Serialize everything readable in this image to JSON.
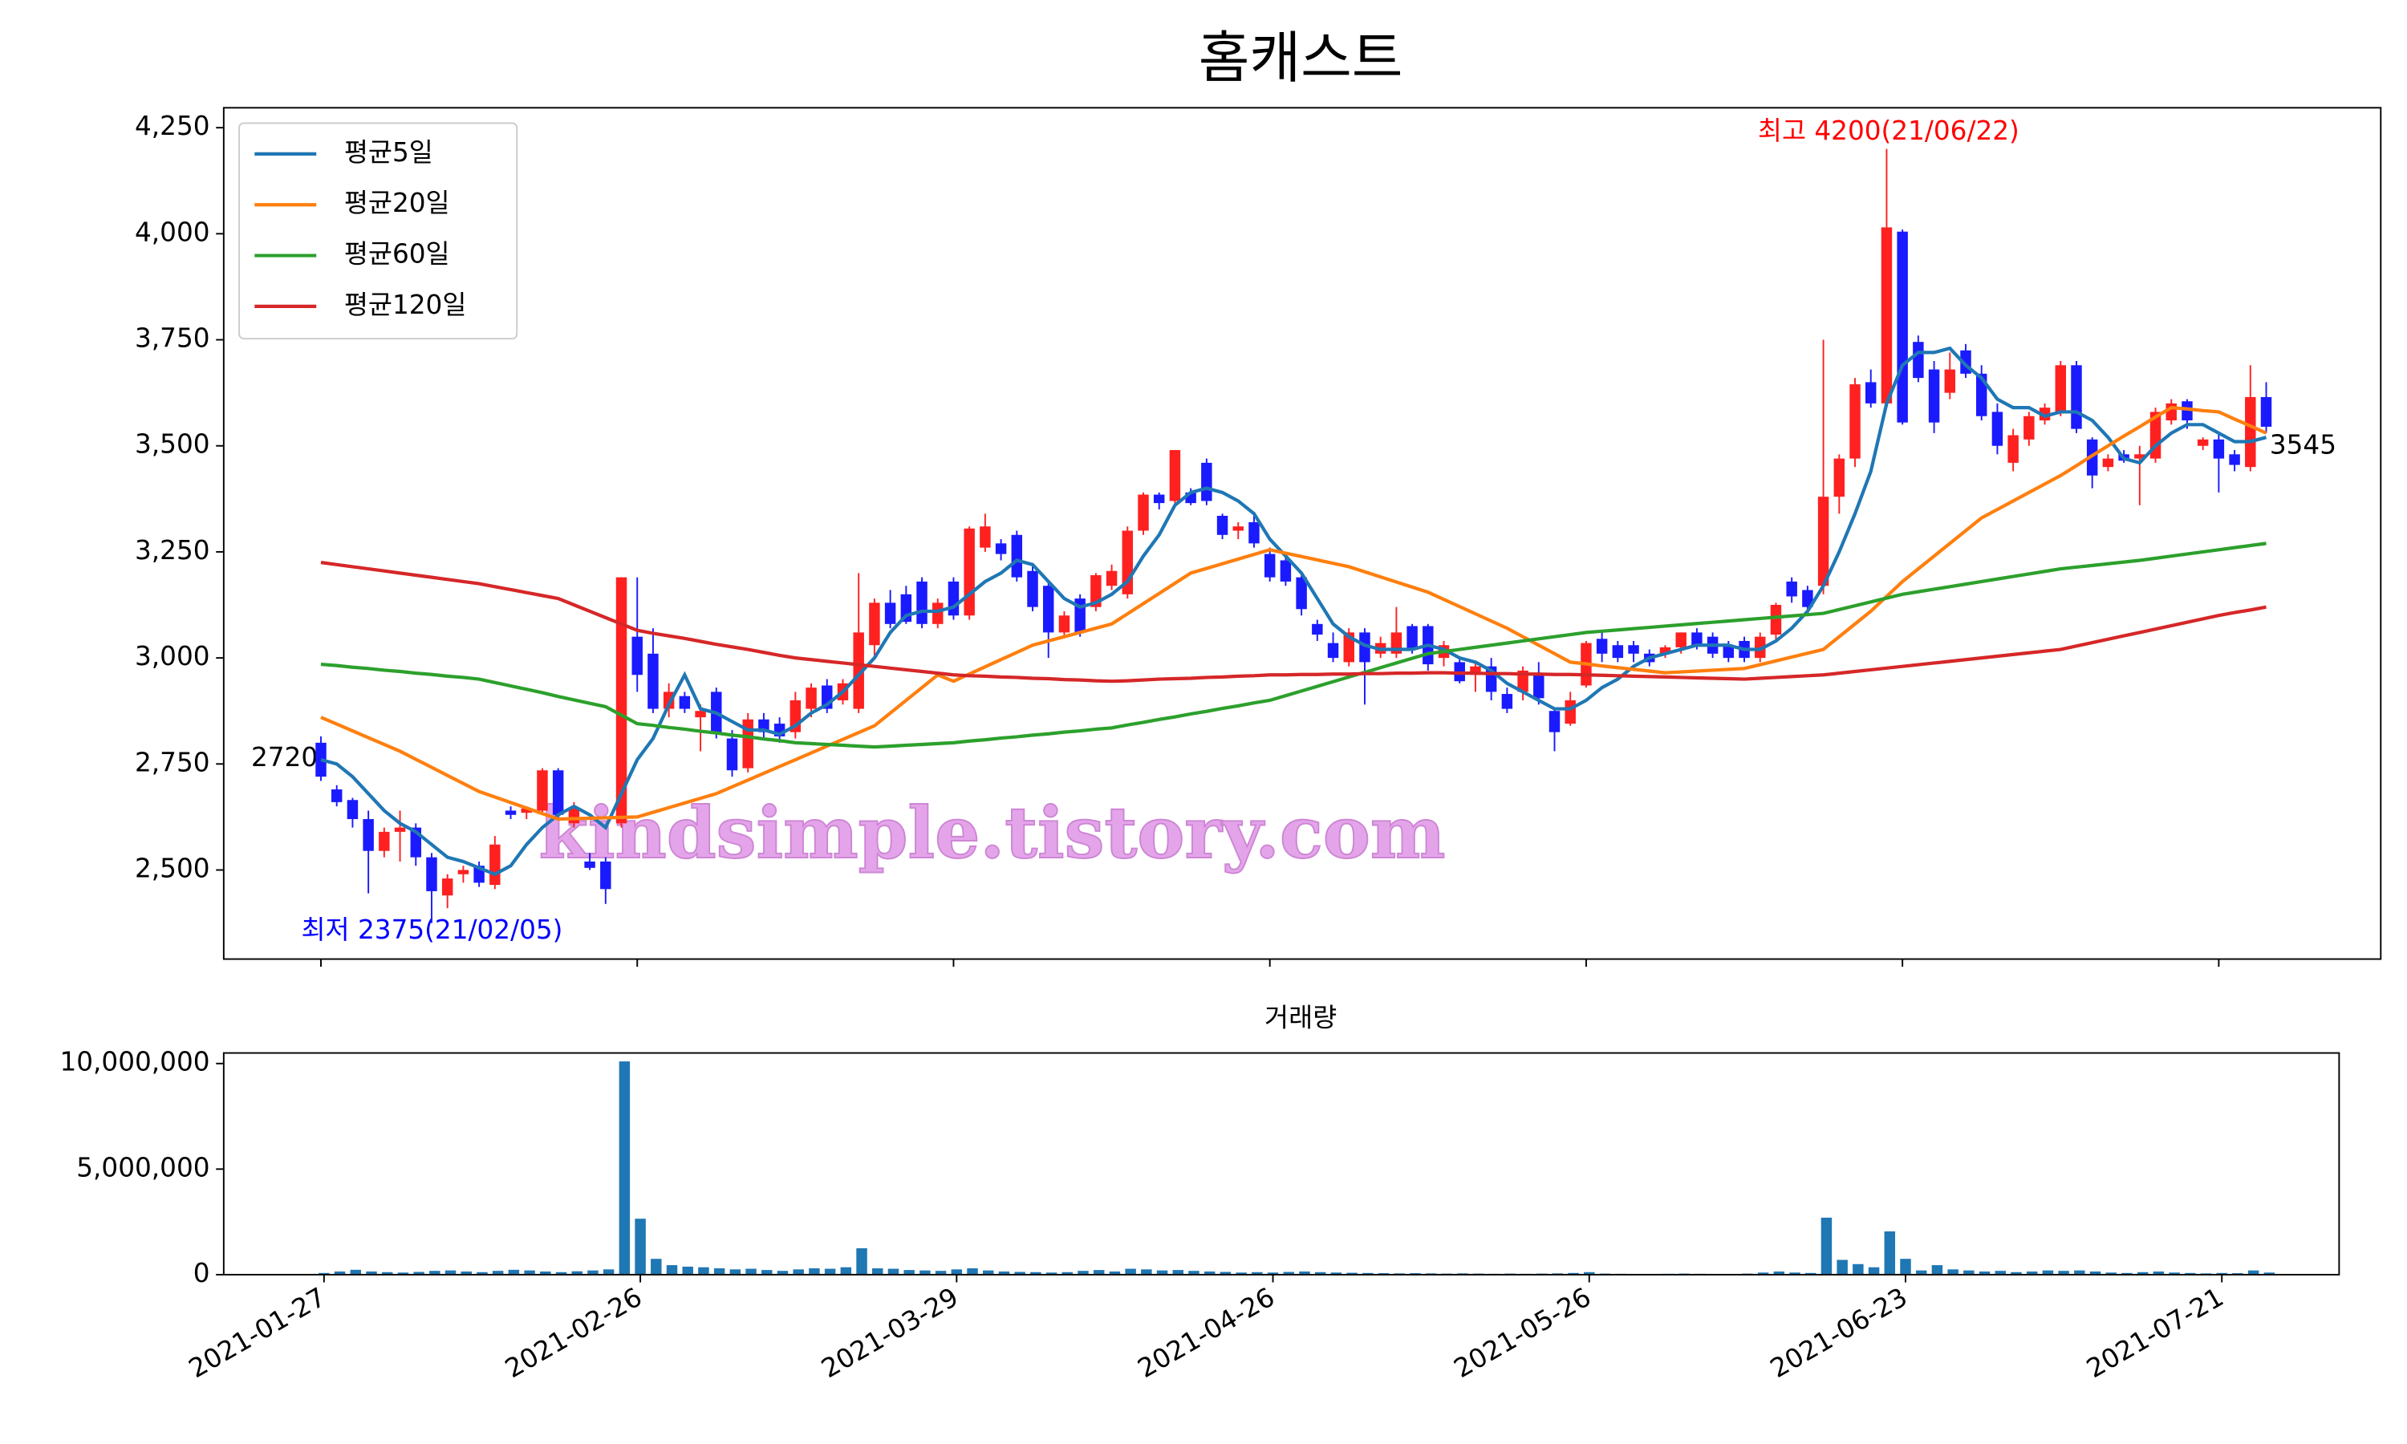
{
  "chart_data": {
    "type": "candlestick",
    "title": "홈캐스트",
    "ylim": [
      2290,
      4297
    ],
    "yticks": [
      {
        "value": 2500,
        "label": "2,500"
      },
      {
        "value": 2750,
        "label": "2,750"
      },
      {
        "value": 3000,
        "label": "3,000"
      },
      {
        "value": 3250,
        "label": "3,250"
      },
      {
        "value": 3500,
        "label": "3,500"
      },
      {
        "value": 3750,
        "label": "3,750"
      },
      {
        "value": 4000,
        "label": "4,000"
      },
      {
        "value": 4250,
        "label": "4,250"
      }
    ],
    "up_color": "#ff2020",
    "down_color": "#1a1aff",
    "legend": "upper left",
    "open": [
      2800,
      2690,
      2665,
      2620,
      2545,
      2590,
      2600,
      2530,
      2440,
      2490,
      2510,
      2465,
      2640,
      2635,
      2640,
      2735,
      2610,
      2520,
      2520,
      2610,
      3050,
      3010,
      2880,
      2910,
      2860,
      2920,
      2810,
      2740,
      2855,
      2845,
      2825,
      2880,
      2935,
      2900,
      2880,
      3030,
      3130,
      3150,
      3180,
      3080,
      3180,
      3100,
      3260,
      3270,
      3290,
      3205,
      3170,
      3060,
      3140,
      3120,
      3170,
      3150,
      3300,
      3385,
      3370,
      3390,
      3460,
      3335,
      3300,
      3320,
      3245,
      3230,
      3190,
      3080,
      3035,
      2990,
      3060,
      3010,
      3010,
      3075,
      3075,
      3000,
      2990,
      2960,
      2980,
      2915,
      2920,
      2960,
      2875,
      2845,
      2935,
      3045,
      3030,
      3030,
      3010,
      3010,
      3025,
      3060,
      3050,
      3030,
      3040,
      3000,
      3055,
      3180,
      3160,
      3170,
      3380,
      3470,
      3650,
      3600,
      4005,
      3745,
      3680,
      3625,
      3725,
      3670,
      3580,
      3460,
      3515,
      3560,
      3580,
      3690,
      3515,
      3450,
      3480,
      3470,
      3470,
      3560,
      3605,
      3500,
      3515,
      3480,
      3450,
      3615
    ],
    "high": [
      2815,
      2700,
      2670,
      2640,
      2600,
      2640,
      2610,
      2540,
      2490,
      2510,
      2520,
      2580,
      2650,
      2650,
      2740,
      2740,
      2660,
      2540,
      2530,
      3190,
      3190,
      3070,
      2940,
      2920,
      2890,
      2930,
      2830,
      2870,
      2870,
      2860,
      2920,
      2940,
      2950,
      2950,
      3200,
      3140,
      3160,
      3170,
      3190,
      3140,
      3190,
      3310,
      3340,
      3280,
      3300,
      3220,
      3180,
      3110,
      3150,
      3200,
      3220,
      3310,
      3390,
      3390,
      3490,
      3400,
      3470,
      3340,
      3320,
      3340,
      3260,
      3240,
      3200,
      3090,
      3060,
      3070,
      3070,
      3050,
      3120,
      3080,
      3080,
      3040,
      3000,
      2990,
      3000,
      2930,
      2980,
      2990,
      2880,
      2920,
      3040,
      3060,
      3040,
      3040,
      3020,
      3030,
      3060,
      3070,
      3060,
      3040,
      3050,
      3060,
      3130,
      3190,
      3170,
      3750,
      3480,
      3660,
      3680,
      4200,
      4010,
      3760,
      3700,
      3720,
      3740,
      3690,
      3600,
      3540,
      3580,
      3600,
      3700,
      3700,
      3520,
      3480,
      3490,
      3500,
      3590,
      3610,
      3610,
      3520,
      3530,
      3490,
      3690,
      3650
    ],
    "low": [
      2710,
      2650,
      2600,
      2445,
      2530,
      2520,
      2510,
      2375,
      2410,
      2470,
      2460,
      2455,
      2620,
      2620,
      2630,
      2620,
      2600,
      2500,
      2420,
      2600,
      2920,
      2870,
      2860,
      2870,
      2780,
      2810,
      2720,
      2730,
      2810,
      2800,
      2810,
      2860,
      2870,
      2890,
      2870,
      3000,
      3070,
      3080,
      3070,
      3070,
      3090,
      3090,
      3250,
      3230,
      3180,
      3110,
      3000,
      3050,
      3050,
      3110,
      3160,
      3140,
      3290,
      3350,
      3360,
      3360,
      3360,
      3280,
      3280,
      3260,
      3180,
      3170,
      3100,
      3040,
      2990,
      2980,
      2890,
      3000,
      3000,
      3010,
      2970,
      2980,
      2940,
      2920,
      2900,
      2870,
      2900,
      2890,
      2780,
      2840,
      2930,
      2990,
      2990,
      2990,
      2980,
      3000,
      3010,
      3020,
      3000,
      2990,
      2990,
      2990,
      3040,
      3130,
      3110,
      3150,
      3340,
      3450,
      3590,
      3590,
      3550,
      3650,
      3530,
      3610,
      3660,
      3560,
      3480,
      3440,
      3500,
      3550,
      3570,
      3530,
      3400,
      3440,
      3460,
      3360,
      3460,
      3550,
      3540,
      3490,
      3390,
      3440,
      3440,
      3530
    ],
    "close": [
      2720,
      2660,
      2620,
      2545,
      2590,
      2600,
      2530,
      2450,
      2480,
      2500,
      2470,
      2560,
      2630,
      2645,
      2735,
      2630,
      2645,
      2505,
      2455,
      3190,
      2960,
      2880,
      2920,
      2880,
      2875,
      2825,
      2735,
      2855,
      2825,
      2815,
      2900,
      2930,
      2880,
      2940,
      3060,
      3130,
      3080,
      3085,
      3080,
      3130,
      3100,
      3305,
      3310,
      3245,
      3190,
      3120,
      3060,
      3100,
      3060,
      3195,
      3205,
      3300,
      3385,
      3365,
      3490,
      3365,
      3370,
      3290,
      3310,
      3270,
      3190,
      3180,
      3115,
      3055,
      3000,
      3060,
      2990,
      3035,
      3060,
      3020,
      2985,
      3030,
      2945,
      2980,
      2920,
      2880,
      2970,
      2905,
      2825,
      2900,
      3035,
      3010,
      3000,
      3010,
      2990,
      3025,
      3060,
      3030,
      3010,
      3000,
      3000,
      3050,
      3125,
      3145,
      3120,
      3380,
      3470,
      3645,
      3600,
      4015,
      3555,
      3660,
      3555,
      3680,
      3670,
      3570,
      3500,
      3525,
      3570,
      3590,
      3690,
      3540,
      3430,
      3470,
      3465,
      3480,
      3580,
      3600,
      3560,
      3515,
      3470,
      3455,
      3615,
      3545
    ],
    "series": [
      {
        "name": "평균5일",
        "color": "#1f77b4",
        "values": [
          2760,
          2750,
          2720,
          2680,
          2640,
          2610,
          2590,
          2560,
          2530,
          2520,
          2505,
          2490,
          2510,
          2560,
          2600,
          2630,
          2650,
          2630,
          2600,
          2680,
          2760,
          2810,
          2890,
          2960,
          2880,
          2870,
          2850,
          2830,
          2830,
          2820,
          2840,
          2870,
          2890,
          2920,
          2960,
          3000,
          3060,
          3100,
          3110,
          3110,
          3120,
          3150,
          3180,
          3200,
          3230,
          3220,
          3180,
          3140,
          3120,
          3130,
          3150,
          3180,
          3240,
          3290,
          3360,
          3390,
          3400,
          3390,
          3370,
          3340,
          3280,
          3240,
          3200,
          3140,
          3080,
          3050,
          3030,
          3020,
          3020,
          3020,
          3030,
          3020,
          3000,
          2990,
          2970,
          2940,
          2920,
          2900,
          2880,
          2880,
          2900,
          2930,
          2950,
          2980,
          3000,
          3010,
          3020,
          3030,
          3030,
          3030,
          3020,
          3020,
          3040,
          3070,
          3110,
          3170,
          3250,
          3340,
          3440,
          3600,
          3690,
          3720,
          3720,
          3730,
          3690,
          3660,
          3610,
          3590,
          3590,
          3570,
          3580,
          3580,
          3560,
          3520,
          3470,
          3460,
          3500,
          3530,
          3550,
          3550,
          3530,
          3510,
          3510,
          3520
        ]
      },
      {
        "name": "평균20일",
        "color": "#ff7f0e",
        "values": [
          2860,
          2844,
          2828,
          2812,
          2796,
          2780,
          2761,
          2742,
          2723,
          2704,
          2685,
          2672,
          2659,
          2646,
          2633,
          2620,
          2621,
          2622,
          2623,
          2624,
          2625,
          2636,
          2647,
          2658,
          2669,
          2680,
          2696,
          2712,
          2728,
          2744,
          2760,
          2776,
          2792,
          2808,
          2824,
          2840,
          2870,
          2900,
          2930,
          2960,
          2945,
          2962,
          2979,
          2996,
          3013,
          3030,
          3040,
          3050,
          3060,
          3070,
          3080,
          3104,
          3128,
          3152,
          3176,
          3200,
          3211,
          3222,
          3233,
          3244,
          3255,
          3247,
          3239,
          3231,
          3223,
          3215,
          3203,
          3191,
          3179,
          3167,
          3155,
          3138,
          3121,
          3104,
          3087,
          3070,
          3050,
          3030,
          3010,
          2990,
          2986,
          2981,
          2977,
          2973,
          2969,
          2965,
          2967,
          2969,
          2971,
          2973,
          2975,
          2984,
          2993,
          3002,
          3011,
          3020,
          3050,
          3080,
          3110,
          3145,
          3180,
          3210,
          3240,
          3270,
          3300,
          3330,
          3350,
          3370,
          3390,
          3410,
          3430,
          3453,
          3477,
          3500,
          3523,
          3545,
          3568,
          3590,
          3587,
          3583,
          3580,
          3563,
          3547,
          3530
        ]
      },
      {
        "name": "평균60일",
        "color": "#2ca02c",
        "values": [
          2985,
          2982,
          2978,
          2975,
          2971,
          2968,
          2964,
          2961,
          2957,
          2954,
          2950,
          2942,
          2934,
          2926,
          2918,
          2909,
          2901,
          2893,
          2885,
          2865,
          2845,
          2841,
          2836,
          2832,
          2827,
          2823,
          2818,
          2814,
          2809,
          2805,
          2800,
          2798,
          2796,
          2794,
          2792,
          2790,
          2792,
          2794,
          2796,
          2798,
          2800,
          2804,
          2807,
          2811,
          2814,
          2818,
          2821,
          2825,
          2828,
          2832,
          2835,
          2842,
          2848,
          2855,
          2861,
          2868,
          2874,
          2881,
          2887,
          2894,
          2900,
          2911,
          2922,
          2933,
          2944,
          2955,
          2966,
          2977,
          2988,
          2999,
          3010,
          3015,
          3020,
          3025,
          3030,
          3035,
          3040,
          3045,
          3050,
          3055,
          3060,
          3063,
          3066,
          3069,
          3072,
          3075,
          3078,
          3081,
          3084,
          3087,
          3090,
          3093,
          3096,
          3099,
          3102,
          3105,
          3114,
          3123,
          3132,
          3141,
          3150,
          3156,
          3162,
          3168,
          3174,
          3180,
          3186,
          3192,
          3198,
          3204,
          3210,
          3214,
          3218,
          3222,
          3226,
          3230,
          3235,
          3240,
          3245,
          3250,
          3255,
          3260,
          3265,
          3270
        ]
      },
      {
        "name": "평균120일",
        "color": "#d62728",
        "values": [
          3225,
          3220,
          3215,
          3210,
          3205,
          3200,
          3195,
          3190,
          3185,
          3180,
          3175,
          3168,
          3161,
          3154,
          3147,
          3140,
          3125,
          3110,
          3095,
          3080,
          3065,
          3058,
          3052,
          3046,
          3039,
          3032,
          3026,
          3020,
          3013,
          3006,
          3000,
          2996,
          2992,
          2988,
          2984,
          2980,
          2976,
          2972,
          2968,
          2964,
          2960,
          2958,
          2957,
          2955,
          2954,
          2952,
          2951,
          2949,
          2948,
          2946,
          2945,
          2946,
          2948,
          2950,
          2951,
          2952,
          2954,
          2955,
          2957,
          2958,
          2960,
          2960,
          2961,
          2961,
          2962,
          2962,
          2963,
          2963,
          2964,
          2964,
          2965,
          2965,
          2964,
          2964,
          2963,
          2963,
          2962,
          2962,
          2961,
          2961,
          2960,
          2959,
          2958,
          2957,
          2956,
          2955,
          2954,
          2953,
          2952,
          2951,
          2950,
          2952,
          2954,
          2956,
          2958,
          2960,
          2964,
          2968,
          2972,
          2976,
          2980,
          2984,
          2988,
          2992,
          2996,
          3000,
          3004,
          3008,
          3012,
          3016,
          3020,
          3028,
          3036,
          3044,
          3052,
          3060,
          3068,
          3076,
          3084,
          3092,
          3100,
          3107,
          3113,
          3120
        ]
      }
    ],
    "annotations": [
      "최고 4200(21/06/22)",
      "최저 2375(21/02/05)",
      "2720",
      "3545"
    ],
    "watermark": "kindsimple.tistory.com",
    "volume": {
      "type": "bar",
      "title": "거래량",
      "color": "#1f77b4",
      "ylim": [
        0,
        10500000
      ],
      "yticks": [
        {
          "value": 0,
          "label": "0"
        },
        {
          "value": 5000000,
          "label": "5,000,000"
        },
        {
          "value": 10000000,
          "label": "10,000,000"
        }
      ],
      "categories": [
        "2021-01-27",
        null,
        null,
        null,
        null,
        null,
        null,
        null,
        null,
        null,
        null,
        null,
        null,
        null,
        null,
        null,
        null,
        null,
        null,
        null,
        "2021-02-26",
        null,
        null,
        null,
        null,
        null,
        null,
        null,
        null,
        null,
        null,
        null,
        null,
        null,
        null,
        null,
        null,
        null,
        null,
        null,
        "2021-03-29",
        null,
        null,
        null,
        null,
        null,
        null,
        null,
        null,
        null,
        null,
        null,
        null,
        null,
        null,
        null,
        null,
        null,
        null,
        null,
        "2021-04-26",
        null,
        null,
        null,
        null,
        null,
        null,
        null,
        null,
        null,
        null,
        null,
        null,
        null,
        null,
        null,
        null,
        null,
        null,
        null,
        "2021-05-26",
        null,
        null,
        null,
        null,
        null,
        null,
        null,
        null,
        null,
        null,
        null,
        null,
        null,
        null,
        null,
        null,
        null,
        null,
        null,
        "2021-06-23",
        null,
        null,
        null,
        null,
        null,
        null,
        null,
        null,
        null,
        null,
        null,
        null,
        null,
        null,
        null,
        null,
        null,
        null,
        null,
        "2021-07-21",
        null,
        null,
        null
      ],
      "values": [
        80000,
        150000,
        230000,
        150000,
        120000,
        100000,
        130000,
        180000,
        200000,
        150000,
        120000,
        180000,
        230000,
        200000,
        150000,
        120000,
        160000,
        200000,
        250000,
        10100000,
        2650000,
        750000,
        450000,
        380000,
        350000,
        300000,
        250000,
        280000,
        220000,
        180000,
        250000,
        300000,
        280000,
        350000,
        1250000,
        300000,
        280000,
        220000,
        200000,
        180000,
        250000,
        300000,
        200000,
        150000,
        130000,
        120000,
        100000,
        120000,
        180000,
        220000,
        150000,
        280000,
        250000,
        200000,
        220000,
        180000,
        150000,
        130000,
        100000,
        120000,
        100000,
        130000,
        150000,
        120000,
        100000,
        90000,
        80000,
        70000,
        60000,
        70000,
        60000,
        50000,
        60000,
        50000,
        40000,
        50000,
        40000,
        50000,
        60000,
        80000,
        120000,
        50000,
        40000,
        30000,
        30000,
        40000,
        50000,
        40000,
        30000,
        30000,
        50000,
        100000,
        150000,
        100000,
        80000,
        2700000,
        700000,
        500000,
        350000,
        2050000,
        750000,
        200000,
        450000,
        250000,
        200000,
        150000,
        180000,
        120000,
        150000,
        200000,
        180000,
        200000,
        150000,
        100000,
        80000,
        120000,
        150000,
        100000,
        80000,
        60000,
        80000,
        70000,
        200000,
        100000
      ]
    }
  }
}
